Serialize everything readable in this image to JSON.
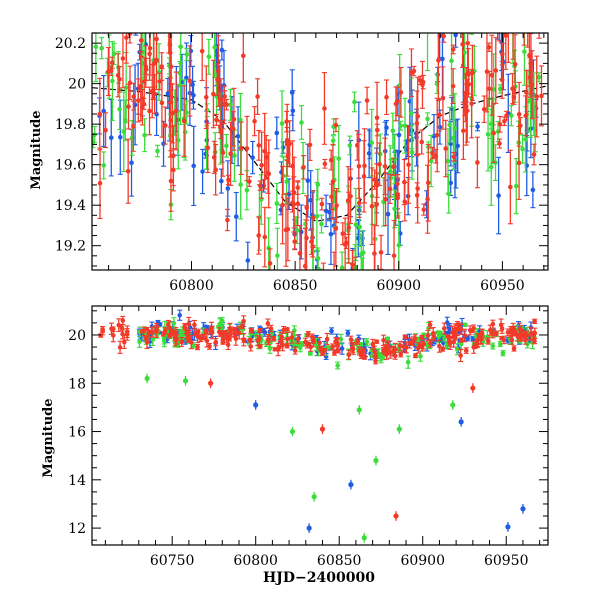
{
  "chart_data": [
    {
      "type": "scatter",
      "panel": "top",
      "xlabel": "",
      "ylabel": "Magnitude",
      "xlim": [
        60752,
        60972
      ],
      "ylim": [
        20.25,
        19.08
      ],
      "y_inverted": true,
      "x_ticks": [
        60800,
        60850,
        60900,
        60950
      ],
      "x_tick_labels": [
        "60800",
        "60850",
        "60900",
        "60950"
      ],
      "y_ticks": [
        19.2,
        19.4,
        19.6,
        19.8,
        20.0,
        20.2
      ],
      "y_tick_labels": [
        "19.2",
        "19.4",
        "19.6",
        "19.8",
        "20",
        "20.2"
      ],
      "model_curve": {
        "name": "model",
        "color": "#000000",
        "x": [
          60752,
          60775,
          60800,
          60815,
          60830,
          60845,
          60860,
          60875,
          60890,
          60905,
          60920,
          60935,
          60950,
          60972
        ],
        "y": [
          19.98,
          19.96,
          19.92,
          19.82,
          19.62,
          19.42,
          19.32,
          19.35,
          19.52,
          19.72,
          19.84,
          19.9,
          19.94,
          19.99
        ]
      },
      "series": [
        {
          "name": "blue",
          "color": "#1f5ce6"
        },
        {
          "name": "green",
          "color": "#3bdc3b"
        },
        {
          "name": "red",
          "color": "#f23a2a"
        }
      ]
    },
    {
      "type": "scatter",
      "panel": "bottom",
      "xlabel": "HJD−2400000",
      "ylabel": "Magnitude",
      "xlim": [
        60702,
        60975
      ],
      "ylim": [
        21.2,
        11.3
      ],
      "y_inverted": true,
      "x_ticks": [
        60750,
        60800,
        60850,
        60900,
        60950
      ],
      "x_tick_labels": [
        "60750",
        "60800",
        "60850",
        "60900",
        "60950"
      ],
      "y_ticks": [
        12,
        14,
        16,
        18,
        20
      ],
      "y_tick_labels": [
        "12",
        "14",
        "16",
        "18",
        "20"
      ],
      "outliers": [
        {
          "series": "blue",
          "x": 60832,
          "y": 12.0
        },
        {
          "series": "blue",
          "x": 60951,
          "y": 12.05
        },
        {
          "series": "blue",
          "x": 60960,
          "y": 12.8
        },
        {
          "series": "blue",
          "x": 60857,
          "y": 13.8
        },
        {
          "series": "blue",
          "x": 60800,
          "y": 17.1
        },
        {
          "series": "blue",
          "x": 60923,
          "y": 16.4
        },
        {
          "series": "green",
          "x": 60835,
          "y": 13.3
        },
        {
          "series": "green",
          "x": 60865,
          "y": 11.6
        },
        {
          "series": "green",
          "x": 60872,
          "y": 14.8
        },
        {
          "series": "green",
          "x": 60822,
          "y": 16.0
        },
        {
          "series": "green",
          "x": 60862,
          "y": 16.9
        },
        {
          "series": "green",
          "x": 60886,
          "y": 16.1
        },
        {
          "series": "green",
          "x": 60918,
          "y": 17.1
        },
        {
          "series": "green",
          "x": 60735,
          "y": 18.2
        },
        {
          "series": "green",
          "x": 60758,
          "y": 18.1
        },
        {
          "series": "red",
          "x": 60884,
          "y": 12.5
        },
        {
          "series": "red",
          "x": 60840,
          "y": 16.1
        },
        {
          "series": "red",
          "x": 60930,
          "y": 17.8
        },
        {
          "series": "red",
          "x": 60773,
          "y": 18.0
        }
      ],
      "series": [
        {
          "name": "blue",
          "color": "#1f5ce6"
        },
        {
          "name": "green",
          "color": "#3bdc3b"
        },
        {
          "name": "red",
          "color": "#f23a2a"
        }
      ]
    }
  ]
}
